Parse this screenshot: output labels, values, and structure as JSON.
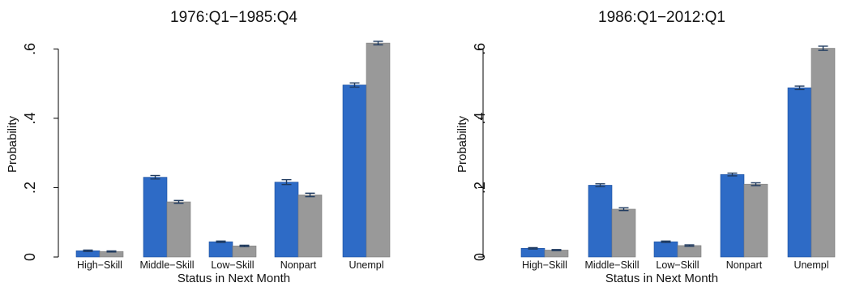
{
  "chart_data": [
    {
      "type": "bar",
      "title": "1976:Q1−1985:Q4",
      "xlabel": "Status in Next Month",
      "ylabel": "Probability",
      "categories": [
        "High−Skill",
        "Middle−Skill",
        "Low−Skill",
        "Nonpart",
        "Unempl"
      ],
      "yticks": [
        0,
        0.2,
        0.4,
        0.6
      ],
      "ytick_labels": [
        "0",
        ".2",
        ".4",
        ".6"
      ],
      "ylim": [
        0,
        0.65
      ],
      "grid": false,
      "error_bars": true,
      "colors": [
        "#2e6bc6",
        "#999999"
      ],
      "series": [
        {
          "values": [
            0.018,
            0.23,
            0.044,
            0.216,
            0.496
          ],
          "errors": [
            0.002,
            0.005,
            0.002,
            0.007,
            0.006
          ]
        },
        {
          "values": [
            0.016,
            0.159,
            0.032,
            0.179,
            0.617
          ],
          "errors": [
            0.0015,
            0.004,
            0.002,
            0.005,
            0.005
          ]
        }
      ]
    },
    {
      "type": "bar",
      "title": "1986:Q1−2012:Q1",
      "xlabel": "Status in Next Month",
      "ylabel": "Probability",
      "categories": [
        "High−Skill",
        "Middle−Skill",
        "Low−Skill",
        "Nonpart",
        "Unempl"
      ],
      "yticks": [
        0,
        0.2,
        0.4,
        0.6
      ],
      "ytick_labels": [
        "0",
        ".2",
        ".4",
        ".6"
      ],
      "ylim": [
        0,
        0.65
      ],
      "grid": false,
      "error_bars": true,
      "colors": [
        "#2e6bc6",
        "#999999"
      ],
      "series": [
        {
          "values": [
            0.025,
            0.207,
            0.044,
            0.238,
            0.488
          ],
          "errors": [
            0.002,
            0.004,
            0.002,
            0.004,
            0.005
          ]
        },
        {
          "values": [
            0.02,
            0.138,
            0.033,
            0.21,
            0.602
          ],
          "errors": [
            0.0015,
            0.004,
            0.002,
            0.004,
            0.006
          ]
        }
      ]
    }
  ]
}
